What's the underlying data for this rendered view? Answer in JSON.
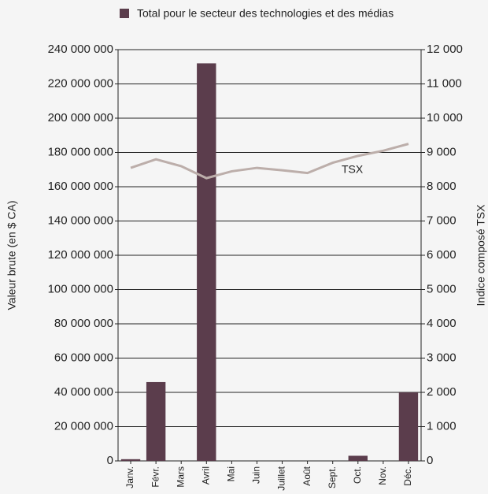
{
  "chart_data": {
    "type": "bar",
    "legend_label": "Total pour le secteur des technologies et des médias",
    "ylabel": "Valeur brute (en $ CA)",
    "y2label": "Indice composé TSX",
    "annotation": "TSX",
    "categories": [
      "Janv.",
      "Févr.",
      "Mars",
      "Avril",
      "Mai",
      "Juin",
      "Juillet",
      "Août",
      "Sept.",
      "Oct.",
      "Nov.",
      "Déc."
    ],
    "series": [
      {
        "name": "Total pour le secteur des technologies et des médias",
        "type": "bar",
        "color": "#5b3d4c",
        "values": [
          1000000,
          46000000,
          0,
          232000000,
          0,
          0,
          0,
          0,
          0,
          3000000,
          0,
          40000000
        ]
      },
      {
        "name": "TSX",
        "type": "line",
        "axis": "y2",
        "color": "#bcaeaa",
        "values": [
          8550,
          8800,
          8600,
          8250,
          8450,
          8550,
          8480,
          8400,
          8700,
          8900,
          9050,
          9250
        ]
      }
    ],
    "ylim": [
      0,
      240000000
    ],
    "yticks": [
      0,
      {
        "value": 20000000,
        "label": "20 000 000"
      },
      {
        "value": 40000000,
        "label": "40 000 000"
      },
      {
        "value": 60000000,
        "label": "60 000 000"
      },
      {
        "value": 80000000,
        "label": "80 000 000"
      },
      {
        "value": 100000000,
        "label": "100 000 000"
      },
      {
        "value": 120000000,
        "label": "120 000 000"
      },
      {
        "value": 140000000,
        "label": "140 000 000"
      },
      {
        "value": 160000000,
        "label": "160 000 000"
      },
      {
        "value": 180000000,
        "label": "180 000 000"
      },
      {
        "value": 200000000,
        "label": "200 000 000"
      },
      {
        "value": 220000000,
        "label": "220 000 000"
      },
      {
        "value": 240000000,
        "label": "240 000 000"
      }
    ],
    "y2lim": [
      0,
      12000
    ],
    "y2ticks": [
      0,
      {
        "value": 1000,
        "label": "1 000"
      },
      {
        "value": 2000,
        "label": "2 000"
      },
      {
        "value": 3000,
        "label": "3 000"
      },
      {
        "value": 4000,
        "label": "4 000"
      },
      {
        "value": 5000,
        "label": "5 000"
      },
      {
        "value": 6000,
        "label": "6 000"
      },
      {
        "value": 7000,
        "label": "7 000"
      },
      {
        "value": 8000,
        "label": "8 000"
      },
      {
        "value": 9000,
        "label": "9 000"
      },
      {
        "value": 10000,
        "label": "10 000"
      },
      {
        "value": 11000,
        "label": "11 000"
      },
      {
        "value": 12000,
        "label": "12 000"
      }
    ],
    "grid": true
  }
}
